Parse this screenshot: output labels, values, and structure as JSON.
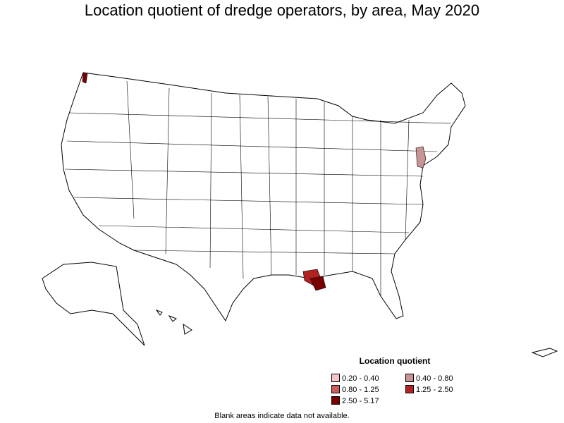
{
  "title": "Location quotient of dredge operators, by area, May 2020",
  "legend": {
    "title": "Location quotient",
    "items": [
      {
        "label": "0.20 - 0.40",
        "color": "#f4c6c6"
      },
      {
        "label": "0.40 - 0.80",
        "color": "#c99494"
      },
      {
        "label": "0.80 - 1.25",
        "color": "#cd5c5c"
      },
      {
        "label": "1.25 - 2.50",
        "color": "#b22222"
      },
      {
        "label": "2.50 - 5.17",
        "color": "#7a0000"
      }
    ]
  },
  "footnote": "Blank areas indicate data not available.",
  "map": {
    "fill_default": "#ffffff",
    "stroke": "#000000",
    "highlighted_areas": [
      {
        "region": "New Jersey / New York area",
        "color": "#c99494"
      },
      {
        "region": "Southern Louisiana",
        "color": "#b22222"
      },
      {
        "region": "Southeast Louisiana coast",
        "color": "#7a0000"
      },
      {
        "region": "Puget Sound, Washington",
        "color": "#7a0000"
      }
    ]
  }
}
